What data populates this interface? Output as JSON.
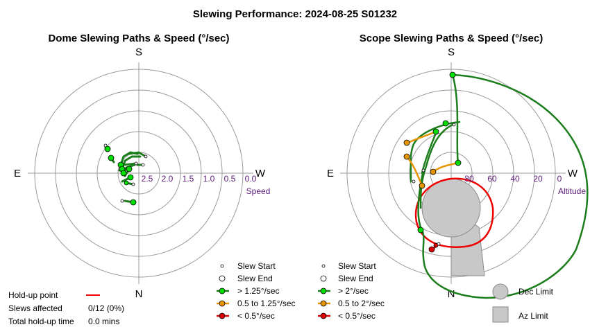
{
  "title": "Slewing Performance: 2024-08-25 S01232",
  "chart_data": [
    {
      "type": "scatter",
      "title": "Dome Slewing Paths & Speed (°/sec)",
      "cardinals": {
        "top": "S",
        "left": "E",
        "right": "W",
        "bottom": "N"
      },
      "radial_axis_label": "Speed",
      "radial_ticks": [
        "2.5",
        "2.0",
        "1.5",
        "1.0",
        "0.5",
        "0.0"
      ],
      "grid": true,
      "legend_position": "bottom-right",
      "legend": [
        "Slew Start",
        "Slew End",
        "> 1.25°/sec",
        "0.5 to 1.25°/sec",
        "< 0.5°/sec"
      ],
      "colors": {
        "fast": "#00aa00",
        "medium": "#e69500",
        "slow": "#dd0000",
        "path_fast": "#1c7d1c"
      }
    },
    {
      "type": "scatter",
      "title": "Scope Slewing Paths & Speed (°/sec)",
      "cardinals": {
        "top": "S",
        "left": "E",
        "right": "W",
        "bottom": "N"
      },
      "radial_axis_label": "Altitude",
      "radial_ticks": [
        "80",
        "60",
        "40",
        "20",
        "0"
      ],
      "grid": true,
      "legend_position": "bottom-center",
      "legend": [
        "Slew Start",
        "Slew End",
        "> 2°/sec",
        "0.5 to 2°/sec",
        "< 0.5°/sec"
      ],
      "limit_legend": [
        "Dec Limit",
        "Az Limit"
      ],
      "colors": {
        "fast": "#00aa00",
        "medium": "#e69500",
        "slow": "#dd0000",
        "limit_fill": "#c8c8c8",
        "holdup": "#ee0000"
      }
    }
  ],
  "summary": {
    "holdup_label": "Hold-up point",
    "slews_affected_label": "Slews affected",
    "slews_affected_value": "0/12 (0%)",
    "total_holdup_label": "Total hold-up time",
    "total_holdup_value": "0.0 mins"
  }
}
